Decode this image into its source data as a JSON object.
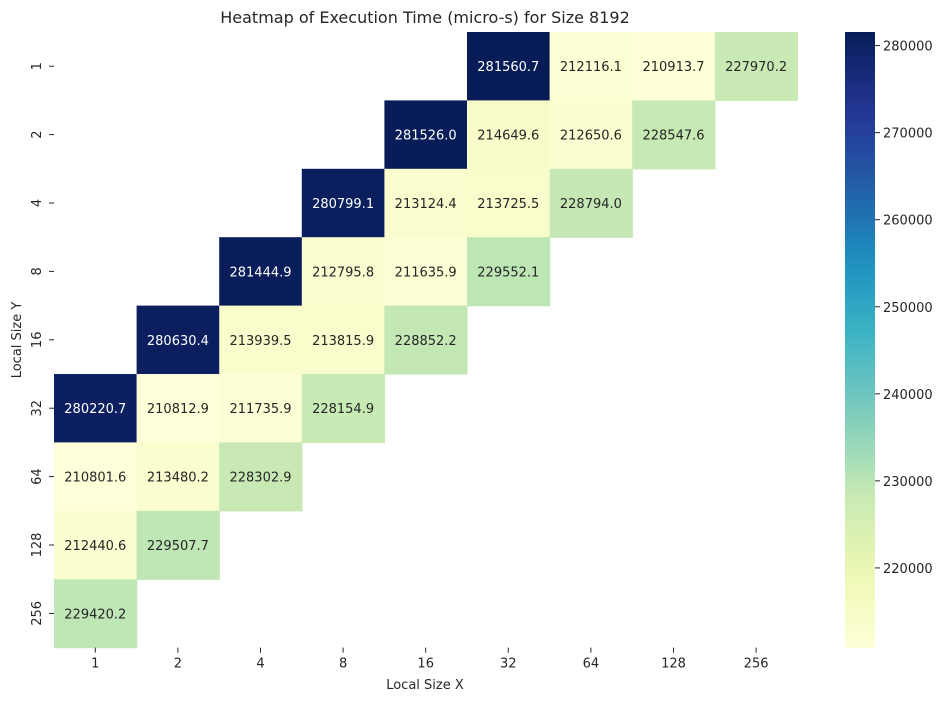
{
  "chart_data": {
    "type": "heatmap",
    "title": "Heatmap of Execution Time (micro-s) for Size 8192",
    "xlabel": "Local Size X",
    "ylabel": "Local Size Y",
    "x_categories": [
      "1",
      "2",
      "4",
      "8",
      "16",
      "32",
      "64",
      "128",
      "256"
    ],
    "y_categories": [
      "1",
      "2",
      "4",
      "8",
      "16",
      "32",
      "64",
      "128",
      "256"
    ],
    "values": [
      [
        null,
        null,
        null,
        null,
        null,
        281560.7,
        212116.1,
        210913.7,
        227970.2
      ],
      [
        null,
        null,
        null,
        null,
        281526.0,
        214649.6,
        212650.6,
        228547.6,
        null
      ],
      [
        null,
        null,
        null,
        280799.1,
        213124.4,
        213725.5,
        228794.0,
        null,
        null
      ],
      [
        null,
        null,
        281444.9,
        212795.8,
        211635.9,
        229552.1,
        null,
        null,
        null
      ],
      [
        null,
        280630.4,
        213939.5,
        213815.9,
        228852.2,
        null,
        null,
        null,
        null
      ],
      [
        280220.7,
        210812.9,
        211735.9,
        228154.9,
        null,
        null,
        null,
        null,
        null
      ],
      [
        210801.6,
        213480.2,
        228302.9,
        null,
        null,
        null,
        null,
        null,
        null
      ],
      [
        212440.6,
        229507.7,
        null,
        null,
        null,
        null,
        null,
        null,
        null
      ],
      [
        229420.2,
        null,
        null,
        null,
        null,
        null,
        null,
        null,
        null
      ]
    ],
    "colorscale": "YlGnBu",
    "colorbar": {
      "vmin": 210801.6,
      "vmax": 281560.7,
      "ticks": [
        220000,
        230000,
        240000,
        250000,
        260000,
        270000,
        280000
      ],
      "tick_labels": [
        "220000",
        "230000",
        "240000",
        "250000",
        "260000",
        "270000",
        "280000"
      ]
    }
  }
}
